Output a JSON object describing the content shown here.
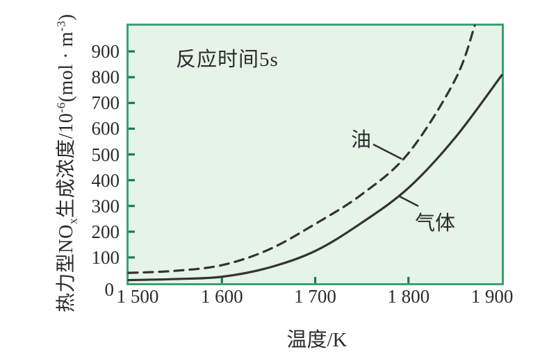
{
  "figure": {
    "background": "#ffffff",
    "plot_bg": "#e6f3e7",
    "border_color": "#3aa173",
    "tick_color": "#1f7a50",
    "line_color": "#333333",
    "text_color": "#2b2b2b"
  },
  "chart_data": {
    "type": "line",
    "title": "",
    "annotation": "反应时间5s",
    "xlabel": "温度/K",
    "ylabel": "热力型NOx生成浓度/10⁻⁶(mol·m⁻³)",
    "ylabel_parts": {
      "base1": "热力型NO",
      "sub1": "x",
      "base2": "生成浓度/10",
      "sup1": "-6",
      "base3": "(mol · m",
      "sup2": "-3",
      "base4": ")"
    },
    "xlim": [
      1500,
      1900
    ],
    "ylim": [
      0,
      1000
    ],
    "grid": false,
    "legend_position": "inline-labels",
    "x_ticks": [
      {
        "value": 1500,
        "label": "1 500",
        "mark": false
      },
      {
        "value": 1600,
        "label": "1 600",
        "mark": true
      },
      {
        "value": 1700,
        "label": "1 700",
        "mark": true
      },
      {
        "value": 1800,
        "label": "1 800",
        "mark": true
      },
      {
        "value": 1900,
        "label": "1 900",
        "mark": false
      }
    ],
    "y_ticks": [
      {
        "value": 0,
        "label": "0",
        "mark": false
      },
      {
        "value": 100,
        "label": "100",
        "mark": true
      },
      {
        "value": 200,
        "label": "200",
        "mark": true
      },
      {
        "value": 300,
        "label": "300",
        "mark": true
      },
      {
        "value": 400,
        "label": "400",
        "mark": true
      },
      {
        "value": 500,
        "label": "500",
        "mark": true
      },
      {
        "value": 600,
        "label": "600",
        "mark": true
      },
      {
        "value": 700,
        "label": "700",
        "mark": true
      },
      {
        "value": 800,
        "label": "800",
        "mark": true
      },
      {
        "value": 900,
        "label": "900",
        "mark": true
      }
    ],
    "series": [
      {
        "name": "油",
        "line": "dashed",
        "x": [
          1500,
          1550,
          1600,
          1650,
          1700,
          1750,
          1800,
          1850,
          1871
        ],
        "y": [
          40,
          48,
          70,
          130,
          230,
          345,
          505,
          790,
          1000
        ],
        "label_pos": {
          "x": 320,
          "y": 141
        },
        "leader": [
          352,
          171,
          393,
          192
        ]
      },
      {
        "name": "气体",
        "line": "solid",
        "x": [
          1500,
          1550,
          1600,
          1650,
          1700,
          1750,
          1800,
          1850,
          1900
        ],
        "y": [
          12,
          16,
          25,
          60,
          125,
          235,
          370,
          565,
          808
        ],
        "label_pos": {
          "x": 412,
          "y": 261
        },
        "leader": [
          388,
          245,
          417,
          260
        ]
      }
    ]
  }
}
